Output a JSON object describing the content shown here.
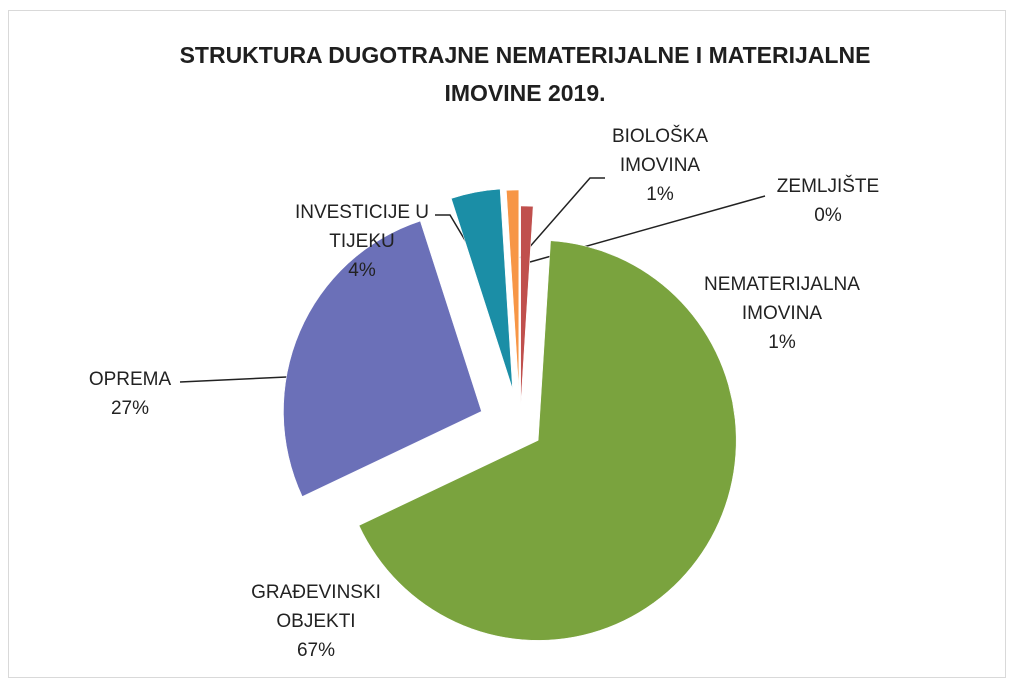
{
  "chart_data": {
    "type": "pie",
    "title": "STRUKTURA DUGOTRAJNE NEMATERIJALNE I MATERIJALNE IMOVINE  2019.",
    "categories": [
      "NEMATERIJALNA IMOVINA",
      "GRAĐEVINSKI OBJEKTI",
      "OPREMA",
      "INVESTICIJE U TIJEKU",
      "BIOLOŠKA IMOVINA",
      "ZEMLJIŠTE"
    ],
    "values": [
      1,
      67,
      27,
      4,
      1,
      0
    ],
    "value_labels": [
      "1%",
      "67%",
      "27%",
      "4%",
      "1%",
      "0%"
    ],
    "colors": [
      "#c0504d",
      "#7aa33e",
      "#6b70b8",
      "#1b8ea6",
      "#f79646",
      "#a6a6a6"
    ]
  }
}
